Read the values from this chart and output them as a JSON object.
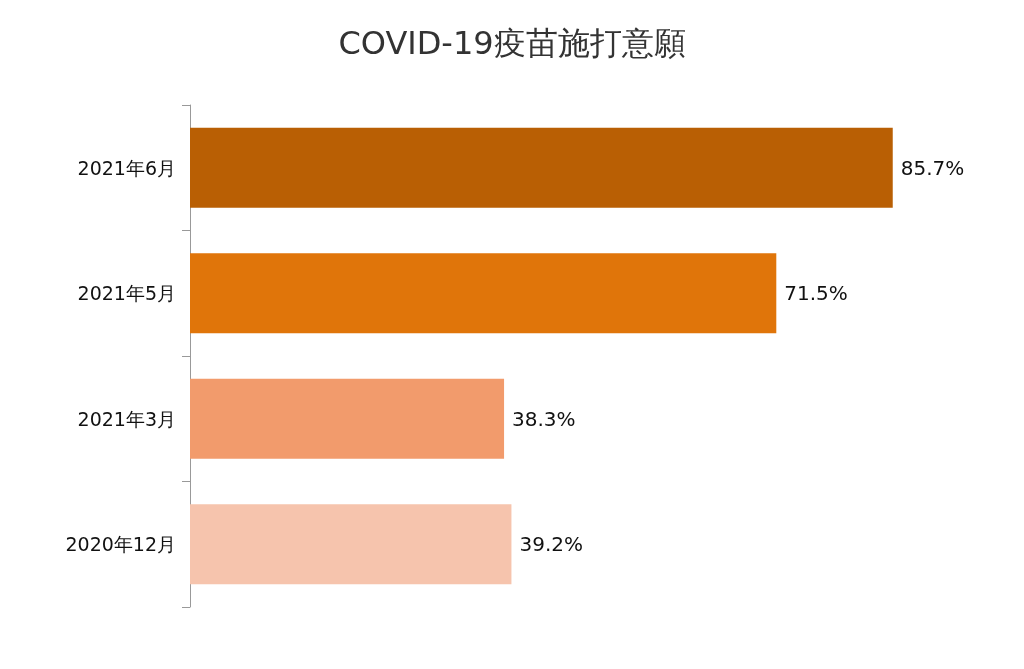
{
  "chart_data": {
    "type": "bar",
    "orientation": "horizontal",
    "title": "COVID-19疫苗施打意願",
    "categories": [
      "2021年6月",
      "2021年5月",
      "2021年3月",
      "2020年12月"
    ],
    "values": [
      85.7,
      71.5,
      38.3,
      39.2
    ],
    "colors": [
      "#b95f04",
      "#e0750a",
      "#f29b6c",
      "#f6c4ad"
    ],
    "value_labels": [
      "85.7%",
      "71.5%",
      "38.3%",
      "39.2%"
    ]
  }
}
